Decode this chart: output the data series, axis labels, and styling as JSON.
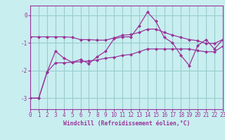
{
  "xlabel": "Windchill (Refroidissement éolien,°C)",
  "x": [
    0,
    1,
    2,
    3,
    4,
    5,
    6,
    7,
    8,
    9,
    10,
    11,
    12,
    13,
    14,
    15,
    16,
    17,
    18,
    19,
    20,
    21,
    22,
    23
  ],
  "line1": [
    -3.0,
    -3.0,
    -2.05,
    -1.3,
    -1.55,
    -1.7,
    -1.6,
    -1.75,
    -1.5,
    -1.3,
    -0.85,
    -0.78,
    -0.78,
    -0.38,
    0.12,
    -0.22,
    -0.8,
    -1.0,
    -1.45,
    -1.82,
    -1.1,
    -0.88,
    -1.22,
    -0.88
  ],
  "line2": [
    -0.78,
    -0.78,
    -0.78,
    -0.78,
    -0.78,
    -0.8,
    -0.88,
    -0.88,
    -0.9,
    -0.9,
    -0.82,
    -0.72,
    -0.7,
    -0.62,
    -0.5,
    -0.5,
    -0.62,
    -0.72,
    -0.8,
    -0.88,
    -0.92,
    -1.02,
    -1.02,
    -0.88
  ],
  "line3": [
    -3.0,
    -3.0,
    -2.05,
    -1.72,
    -1.72,
    -1.7,
    -1.68,
    -1.65,
    -1.62,
    -1.55,
    -1.52,
    -1.45,
    -1.42,
    -1.32,
    -1.22,
    -1.22,
    -1.22,
    -1.22,
    -1.22,
    -1.22,
    -1.28,
    -1.32,
    -1.32,
    -1.12
  ],
  "line_color": "#993399",
  "bg_color": "#c8eef0",
  "grid_color": "#99cccc",
  "ylim": [
    -3.4,
    0.35
  ],
  "yticks": [
    0,
    -1,
    -2,
    -3
  ],
  "xlim": [
    0,
    23
  ]
}
